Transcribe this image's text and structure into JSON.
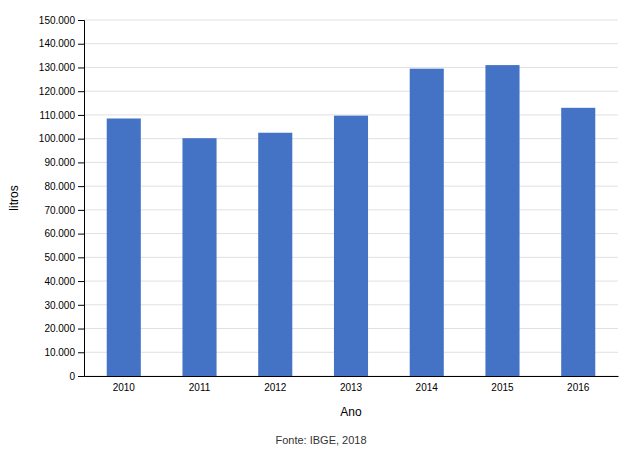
{
  "chart_data": {
    "type": "bar",
    "categories": [
      "2010",
      "2011",
      "2012",
      "2013",
      "2014",
      "2015",
      "2016"
    ],
    "values": [
      108500,
      100200,
      102500,
      109700,
      129500,
      131000,
      113000
    ],
    "color": "#4472C4",
    "xlabel": "Ano",
    "ylabel": "litros",
    "ylim": [
      0,
      150000
    ],
    "yticks": [
      0,
      {
        "value": 10000,
        "label": "10.000"
      },
      {
        "value": 20000,
        "label": "20.000"
      },
      {
        "value": 30000,
        "label": "30.000"
      },
      {
        "value": 40000,
        "label": "40.000"
      },
      {
        "value": 50000,
        "label": "50.000"
      },
      {
        "value": 60000,
        "label": "60.000"
      },
      {
        "value": 70000,
        "label": "70.000"
      },
      {
        "value": 80000,
        "label": "80.000"
      },
      {
        "value": 90000,
        "label": "90.000"
      },
      {
        "value": 100000,
        "label": "100.000"
      },
      {
        "value": 110000,
        "label": "110.000"
      },
      {
        "value": 120000,
        "label": "120.000"
      },
      {
        "value": 130000,
        "label": "130.000"
      },
      {
        "value": 140000,
        "label": "140.000"
      },
      {
        "value": 150000,
        "label": "150.000"
      }
    ],
    "grid": true,
    "annotations": [
      "Fonte: IBGE, 2018"
    ]
  }
}
